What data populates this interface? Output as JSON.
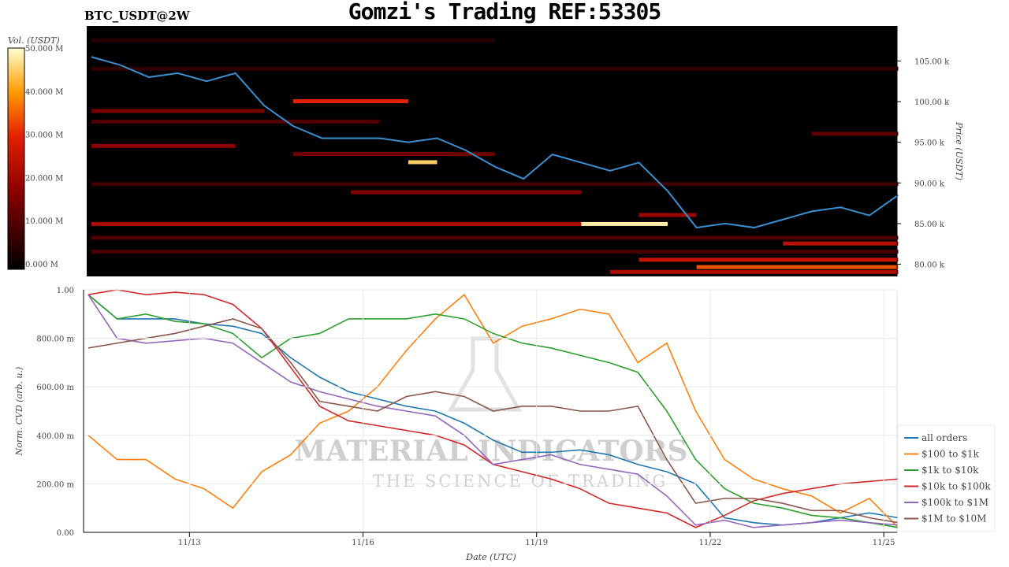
{
  "header": {
    "title": "Gomzi's Trading REF:53305",
    "symbol": "BTC_USDT@2W"
  },
  "chart_data": [
    {
      "type": "heatmap",
      "title": "BTC_USDT@2W",
      "ylabel": "Price (USDT)",
      "colorbar_label": "Vol. (USDT)",
      "colorbar_ticks": [
        "0.000 M",
        "10.000 M",
        "20.000 M",
        "30.000 M",
        "40.000 M",
        "50.000 M"
      ],
      "colorbar_range": [
        0,
        50
      ],
      "y_ticks": [
        "80.00 k",
        "85.00 k",
        "90.00 k",
        "95.00 k",
        "100.00 k",
        "105.00 k"
      ],
      "ylim": [
        78.5,
        109.3
      ],
      "price_x": [
        "11/11 06:00",
        "11/11 18:00",
        "11/12 06:00",
        "11/12 18:00",
        "11/13 06:00",
        "11/13 18:00",
        "11/14 06:00",
        "11/14 18:00",
        "11/15 06:00",
        "11/15 18:00",
        "11/16 06:00",
        "11/16 18:00",
        "11/17 06:00",
        "11/17 18:00",
        "11/18 06:00",
        "11/18 18:00",
        "11/19 06:00",
        "11/19 18:00",
        "11/20 06:00",
        "11/20 18:00",
        "11/21 06:00",
        "11/21 18:00",
        "11/22 06:00",
        "11/22 18:00",
        "11/23 06:00",
        "11/23 18:00",
        "11/24 06:00",
        "11/24 18:00",
        "11/25 06:00"
      ],
      "price": [
        105.5,
        104.5,
        103,
        103.5,
        102.5,
        103.5,
        99.5,
        97,
        95.5,
        95.5,
        95.5,
        95,
        95.5,
        94,
        92,
        90.5,
        93.5,
        92.5,
        91.5,
        92.5,
        89,
        84.5,
        85,
        84.5,
        85.5,
        86.5,
        87,
        86,
        88.5
      ],
      "price_color": "#3a8fd0",
      "bands": [
        {
          "price": 100,
          "from": "11/14 18:00",
          "to": "11/16 18:00",
          "vol": 30
        },
        {
          "price": 98.8,
          "from": "11/11 06:00",
          "to": "11/14 06:00",
          "vol": 15
        },
        {
          "price": 97.5,
          "from": "11/11 06:00",
          "to": "11/16 06:00",
          "vol": 10
        },
        {
          "price": 94.5,
          "from": "11/11 06:00",
          "to": "11/13 18:00",
          "vol": 18
        },
        {
          "price": 93.5,
          "from": "11/14 18:00",
          "to": "11/18 06:00",
          "vol": 14
        },
        {
          "price": 92.5,
          "from": "11/16 18:00",
          "to": "11/17 06:00",
          "vol": 45
        },
        {
          "price": 89.8,
          "from": "11/11 06:00",
          "to": "11/25 06:00",
          "vol": 8
        },
        {
          "price": 88.8,
          "from": "11/15 18:00",
          "to": "11/19 18:00",
          "vol": 16
        },
        {
          "price": 86,
          "from": "11/20 18:00",
          "to": "11/21 18:00",
          "vol": 20
        },
        {
          "price": 84.9,
          "from": "11/11 06:00",
          "to": "11/21 06:00",
          "vol": 22
        },
        {
          "price": 84.9,
          "from": "11/19 18:00",
          "to": "11/21 06:00",
          "vol": 48
        },
        {
          "price": 83.2,
          "from": "11/11 06:00",
          "to": "11/25 06:00",
          "vol": 10
        },
        {
          "price": 82.5,
          "from": "11/23 06:00",
          "to": "11/25 06:00",
          "vol": 24
        },
        {
          "price": 81.5,
          "from": "11/11 06:00",
          "to": "11/25 06:00",
          "vol": 9
        },
        {
          "price": 80.5,
          "from": "11/20 18:00",
          "to": "11/25 06:00",
          "vol": 26
        },
        {
          "price": 79.6,
          "from": "11/21 18:00",
          "to": "11/25 06:00",
          "vol": 34
        },
        {
          "price": 79,
          "from": "11/20 06:00",
          "to": "11/25 06:00",
          "vol": 22
        },
        {
          "price": 96,
          "from": "11/23 18:00",
          "to": "11/25 06:00",
          "vol": 12
        },
        {
          "price": 104,
          "from": "11/11 06:00",
          "to": "11/25 06:00",
          "vol": 6
        },
        {
          "price": 107.5,
          "from": "11/11 06:00",
          "to": "11/18 06:00",
          "vol": 5
        }
      ]
    },
    {
      "type": "line",
      "xlabel": "Date (UTC)",
      "ylabel": "Norm. CVD (arb. u.)",
      "x_ticks": [
        "11/13",
        "11/16",
        "11/19",
        "11/22",
        "11/25"
      ],
      "y_ticks": [
        "0.00",
        "200.00 m",
        "400.00 m",
        "600.00 m",
        "800.00 m",
        "1.00"
      ],
      "ylim": [
        0,
        1
      ],
      "grid": true,
      "legend": "bottom-right",
      "x": [
        "11/11 06:00",
        "11/11 18:00",
        "11/12 06:00",
        "11/12 18:00",
        "11/13 06:00",
        "11/13 18:00",
        "11/14 06:00",
        "11/14 18:00",
        "11/15 06:00",
        "11/15 18:00",
        "11/16 06:00",
        "11/16 18:00",
        "11/17 06:00",
        "11/17 18:00",
        "11/18 06:00",
        "11/18 18:00",
        "11/19 06:00",
        "11/19 18:00",
        "11/20 06:00",
        "11/20 18:00",
        "11/21 06:00",
        "11/21 18:00",
        "11/22 06:00",
        "11/22 18:00",
        "11/23 06:00",
        "11/23 18:00",
        "11/24 06:00",
        "11/24 18:00",
        "11/25 06:00"
      ],
      "series": [
        {
          "name": "all orders",
          "color": "#1f77b4",
          "values": [
            0.98,
            0.88,
            0.88,
            0.88,
            0.86,
            0.85,
            0.82,
            0.72,
            0.64,
            0.58,
            0.55,
            0.52,
            0.5,
            0.45,
            0.38,
            0.33,
            0.33,
            0.34,
            0.32,
            0.28,
            0.25,
            0.2,
            0.06,
            0.04,
            0.03,
            0.04,
            0.06,
            0.08,
            0.06
          ]
        },
        {
          "name": "$100 to $1k",
          "color": "#ff7f0e",
          "values": [
            0.4,
            0.3,
            0.3,
            0.22,
            0.18,
            0.1,
            0.25,
            0.32,
            0.45,
            0.5,
            0.6,
            0.75,
            0.88,
            0.98,
            0.78,
            0.85,
            0.88,
            0.92,
            0.9,
            0.7,
            0.78,
            0.5,
            0.3,
            0.22,
            0.18,
            0.15,
            0.08,
            0.14,
            0.02
          ]
        },
        {
          "name": "$1k to $10k",
          "color": "#2ca02c",
          "values": [
            0.98,
            0.88,
            0.9,
            0.87,
            0.86,
            0.82,
            0.72,
            0.8,
            0.82,
            0.88,
            0.88,
            0.88,
            0.9,
            0.88,
            0.82,
            0.78,
            0.76,
            0.73,
            0.7,
            0.66,
            0.5,
            0.3,
            0.18,
            0.12,
            0.1,
            0.07,
            0.06,
            0.04,
            0.02
          ]
        },
        {
          "name": "$10k to $100k",
          "color": "#d62728",
          "values": [
            0.98,
            1.0,
            0.98,
            0.99,
            0.98,
            0.94,
            0.84,
            0.68,
            0.52,
            0.46,
            0.44,
            0.42,
            0.4,
            0.36,
            0.28,
            0.25,
            0.22,
            0.18,
            0.12,
            0.1,
            0.08,
            0.02,
            0.07,
            0.13,
            0.16,
            0.18,
            0.2,
            0.21,
            0.22
          ]
        },
        {
          "name": "$100k to $1M",
          "color": "#9467bd",
          "values": [
            0.98,
            0.8,
            0.78,
            0.79,
            0.8,
            0.78,
            0.7,
            0.62,
            0.58,
            0.55,
            0.52,
            0.5,
            0.48,
            0.4,
            0.28,
            0.3,
            0.32,
            0.28,
            0.26,
            0.24,
            0.15,
            0.03,
            0.05,
            0.02,
            0.03,
            0.04,
            0.05,
            0.04,
            0.03
          ]
        },
        {
          "name": "$1M to $10M",
          "color": "#8c564b",
          "values": [
            0.76,
            0.78,
            0.8,
            0.82,
            0.85,
            0.88,
            0.84,
            0.7,
            0.54,
            0.52,
            0.5,
            0.56,
            0.58,
            0.56,
            0.5,
            0.52,
            0.52,
            0.5,
            0.5,
            0.52,
            0.3,
            0.12,
            0.14,
            0.14,
            0.12,
            0.09,
            0.09,
            0.06,
            0.04
          ]
        }
      ]
    }
  ],
  "watermark": {
    "line1": "MATERIAL INDICATORS",
    "line2": "THE SCIENCE OF TRADING"
  }
}
